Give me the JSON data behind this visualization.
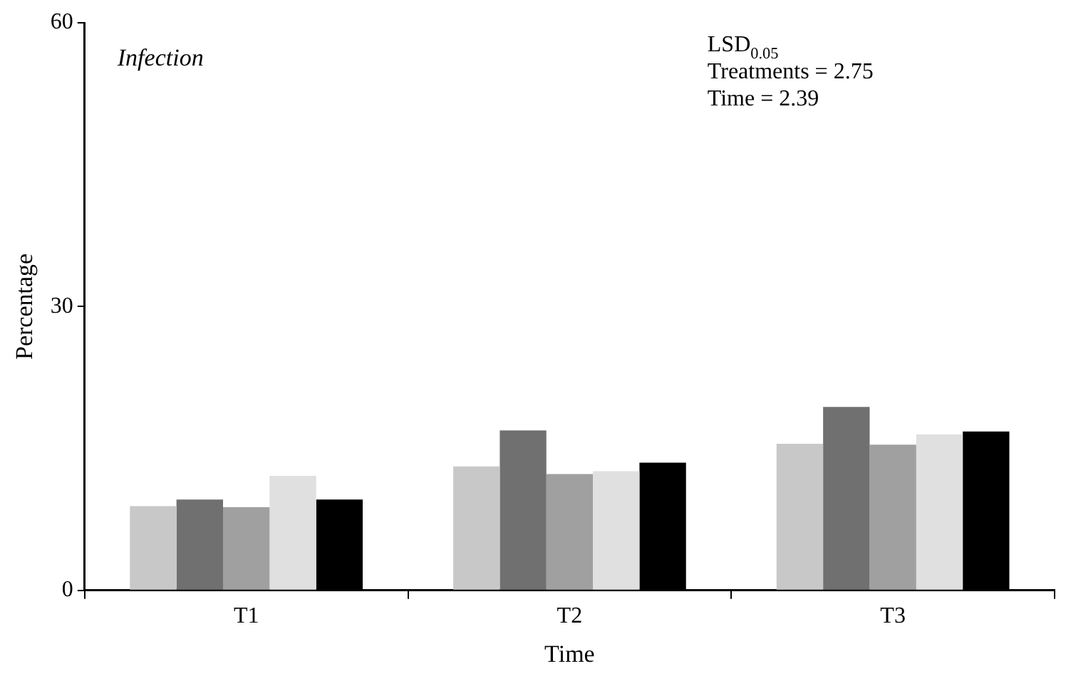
{
  "chart_data": {
    "type": "bar",
    "xlabel": "Time",
    "ylabel": "Percentage",
    "categories": [
      "T1",
      "T2",
      "T3"
    ],
    "series": [
      {
        "color": "#c8c8c8",
        "values": [
          8.9,
          13.1,
          15.5
        ]
      },
      {
        "color": "#707070",
        "values": [
          9.6,
          16.9,
          19.4
        ]
      },
      {
        "color": "#a0a0a0",
        "values": [
          8.8,
          12.3,
          15.4
        ]
      },
      {
        "color": "#e0e0e0",
        "values": [
          12.1,
          12.6,
          16.5
        ]
      },
      {
        "color": "#000000",
        "values": [
          9.6,
          13.5,
          16.8
        ]
      }
    ],
    "ylim": [
      0,
      60
    ],
    "yticks": [
      0,
      30,
      60
    ],
    "grid": false,
    "legend": false,
    "annotations": [
      "Infection",
      "LSD$_{0.05}$",
      "Treatments = 2.75",
      "Time = 2.39"
    ]
  }
}
